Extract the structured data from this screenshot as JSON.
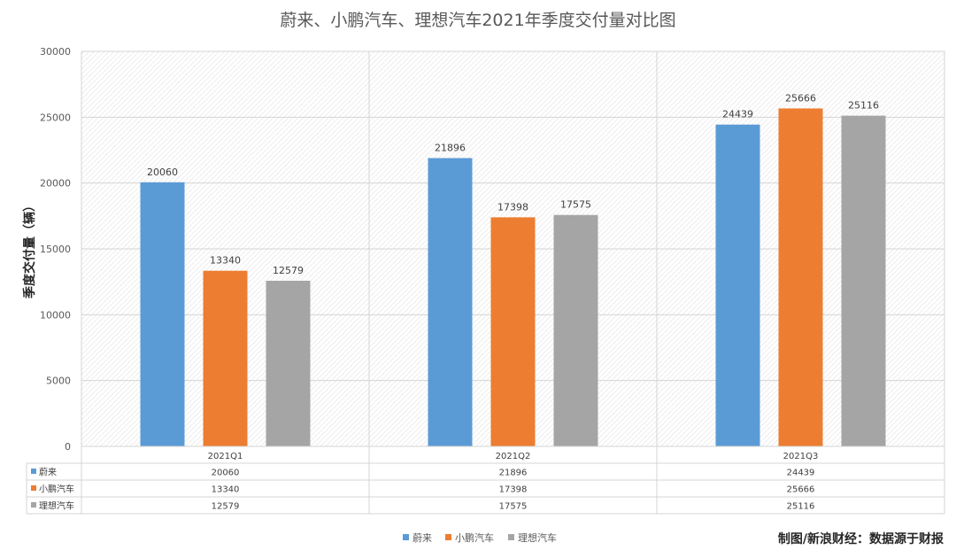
{
  "title": "蔚来、小鹏汽车、理想汽车2021年季度交付量对比图",
  "source": "制图/新浪财经：数据源于财报",
  "colors": {
    "s0": "#5B9BD5",
    "s1": "#ED7D31",
    "s2": "#A5A5A5"
  },
  "chart_data": {
    "type": "bar",
    "title": "蔚来、小鹏汽车、理想汽车2021年季度交付量对比图",
    "ylabel": "季度交付量（辆）",
    "xlabel": "",
    "ylim": [
      0,
      30000
    ],
    "yticks": [
      0,
      5000,
      10000,
      15000,
      20000,
      25000,
      30000
    ],
    "categories": [
      "2021Q1",
      "2021Q2",
      "2021Q3"
    ],
    "series": [
      {
        "name": "蔚来",
        "values": [
          20060,
          21896,
          24439
        ]
      },
      {
        "name": "小鹏汽车",
        "values": [
          13340,
          17398,
          25666
        ]
      },
      {
        "name": "理想汽车",
        "values": [
          12579,
          17575,
          25116
        ]
      }
    ],
    "grid": true,
    "legend": "bottom",
    "data_table": true
  }
}
